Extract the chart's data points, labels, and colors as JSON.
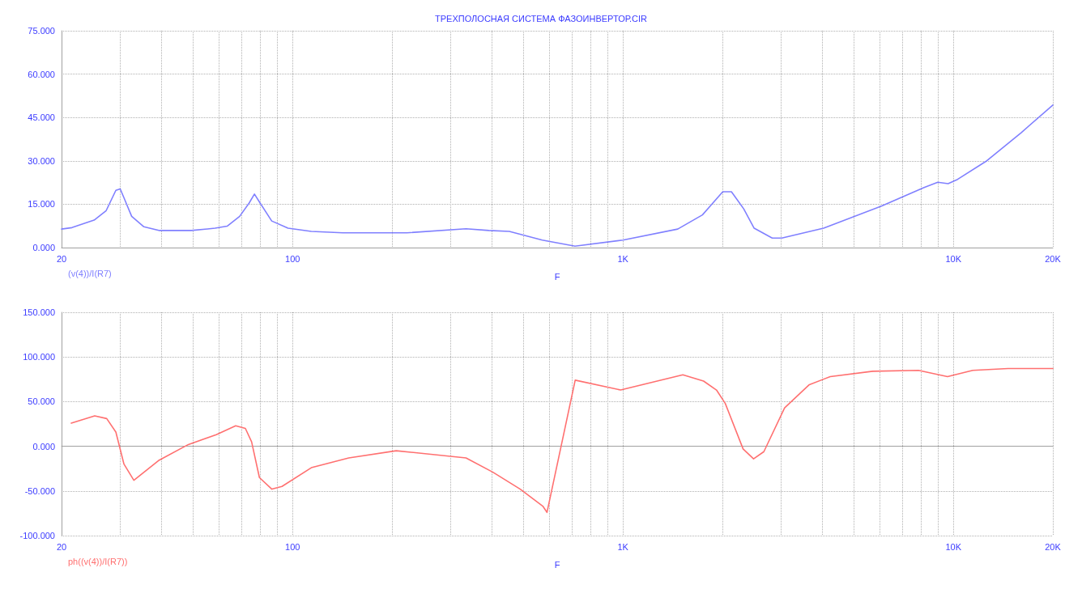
{
  "chart_data": [
    {
      "type": "line",
      "title": "ТРЕХПОЛОСНАЯ СИСТЕМА ФАЗОИНВЕРТОР.CIR",
      "xlabel": "F",
      "log": "x",
      "grid": true,
      "legend": "bottom left",
      "marker": "none",
      "line_style": "solid",
      "xlim": [
        20,
        20000
      ],
      "xticks": [
        {
          "value": 20,
          "label": "20"
        },
        {
          "value": 30,
          "label": null
        },
        {
          "value": 40,
          "label": null
        },
        {
          "value": 50,
          "label": null
        },
        {
          "value": 60,
          "label": null
        },
        {
          "value": 70,
          "label": null
        },
        {
          "value": 80,
          "label": null
        },
        {
          "value": 90,
          "label": null
        },
        {
          "value": 100,
          "label": "100"
        },
        {
          "value": 200,
          "label": null
        },
        {
          "value": 300,
          "label": null
        },
        {
          "value": 400,
          "label": null
        },
        {
          "value": 500,
          "label": null
        },
        {
          "value": 600,
          "label": null
        },
        {
          "value": 700,
          "label": null
        },
        {
          "value": 800,
          "label": null
        },
        {
          "value": 900,
          "label": null
        },
        {
          "value": 1000,
          "label": "1K"
        },
        {
          "value": 2000,
          "label": null
        },
        {
          "value": 3000,
          "label": null
        },
        {
          "value": 4000,
          "label": null
        },
        {
          "value": 5000,
          "label": null
        },
        {
          "value": 6000,
          "label": null
        },
        {
          "value": 7000,
          "label": null
        },
        {
          "value": 8000,
          "label": null
        },
        {
          "value": 9000,
          "label": null
        },
        {
          "value": 10000,
          "label": "10K"
        },
        {
          "value": 20000,
          "label": "20K"
        }
      ],
      "ylim": [
        0,
        75
      ],
      "yticks": [
        {
          "value": 0,
          "label": "0.000"
        },
        {
          "value": 15,
          "label": "15.000"
        },
        {
          "value": 30,
          "label": "30.000"
        },
        {
          "value": 45,
          "label": "45.000"
        },
        {
          "value": 60,
          "label": "60.000"
        },
        {
          "value": 75,
          "label": "75.000"
        }
      ],
      "series": [
        {
          "name": "(v(4))/I(R7)",
          "color": "#8080ff",
          "x": [
            20,
            21.5,
            25.1,
            27.3,
            29.2,
            30.1,
            30.9,
            32.6,
            35.5,
            39.6,
            49.4,
            58.3,
            63.4,
            69.2,
            73.9,
            76.7,
            79.8,
            86.5,
            96.9,
            114,
            142,
            222,
            335,
            393,
            453,
            570,
            716,
            1000,
            1465,
            1740,
            2005,
            2130,
            2320,
            2495,
            2830,
            3025,
            4050,
            6075,
            8155,
            8970,
            9640,
            10300,
            12540,
            16060,
            20000
          ],
          "values": [
            6.4,
            6.9,
            9.5,
            12.8,
            19.8,
            20.3,
            17.2,
            10.8,
            7.2,
            5.9,
            5.9,
            6.7,
            7.4,
            10.8,
            15.4,
            18.5,
            15.4,
            9.2,
            6.7,
            5.6,
            5.1,
            5.1,
            6.5,
            5.9,
            5.6,
            2.6,
            0.5,
            2.6,
            6.4,
            11.3,
            19.3,
            19.3,
            13.4,
            6.7,
            3.3,
            3.3,
            6.7,
            14.4,
            20.8,
            22.6,
            22.1,
            23.6,
            29.8,
            39.8,
            49.3
          ]
        }
      ]
    },
    {
      "type": "line",
      "xlabel": "F",
      "log": "x",
      "grid": true,
      "legend": "bottom left",
      "marker": "none",
      "line_style": "solid",
      "xlim": [
        20,
        20000
      ],
      "xticks": [
        {
          "value": 20,
          "label": "20"
        },
        {
          "value": 30,
          "label": null
        },
        {
          "value": 40,
          "label": null
        },
        {
          "value": 50,
          "label": null
        },
        {
          "value": 60,
          "label": null
        },
        {
          "value": 70,
          "label": null
        },
        {
          "value": 80,
          "label": null
        },
        {
          "value": 90,
          "label": null
        },
        {
          "value": 100,
          "label": "100"
        },
        {
          "value": 200,
          "label": null
        },
        {
          "value": 300,
          "label": null
        },
        {
          "value": 400,
          "label": null
        },
        {
          "value": 500,
          "label": null
        },
        {
          "value": 600,
          "label": null
        },
        {
          "value": 700,
          "label": null
        },
        {
          "value": 800,
          "label": null
        },
        {
          "value": 900,
          "label": null
        },
        {
          "value": 1000,
          "label": "1K"
        },
        {
          "value": 2000,
          "label": null
        },
        {
          "value": 3000,
          "label": null
        },
        {
          "value": 4000,
          "label": null
        },
        {
          "value": 5000,
          "label": null
        },
        {
          "value": 6000,
          "label": null
        },
        {
          "value": 7000,
          "label": null
        },
        {
          "value": 8000,
          "label": null
        },
        {
          "value": 9000,
          "label": null
        },
        {
          "value": 10000,
          "label": "10K"
        },
        {
          "value": 20000,
          "label": "20K"
        }
      ],
      "ylim": [
        -100,
        150
      ],
      "yticks": [
        {
          "value": -100,
          "label": "-100.000"
        },
        {
          "value": -50,
          "label": "-50.000"
        },
        {
          "value": 0,
          "label": "0.000"
        },
        {
          "value": 50,
          "label": "50.000"
        },
        {
          "value": 100,
          "label": "100.000"
        },
        {
          "value": 150,
          "label": "150.000"
        }
      ],
      "series": [
        {
          "name": "ph((v(4))/I(R7))",
          "color": "#ff7070",
          "x": [
            21.4,
            25.2,
            27.4,
            29.2,
            30.9,
            33.1,
            39.3,
            48.4,
            58.8,
            67.3,
            72.0,
            75.2,
            79.4,
            86.6,
            92.9,
            114,
            148,
            206,
            335,
            404,
            489,
            572,
            589,
            717,
            984,
            1518,
            1754,
            1919,
            2040,
            2310,
            2485,
            2670,
            3085,
            3665,
            4240,
            5700,
            7840,
            9600,
            11450,
            14640,
            20000
          ],
          "values": [
            26,
            34,
            31,
            16,
            -20,
            -38,
            -16,
            2,
            13,
            23,
            20,
            5,
            -35,
            -48,
            -45,
            -24,
            -13,
            -5,
            -13,
            -29,
            -48,
            -67,
            -74,
            74,
            63,
            80,
            73,
            63,
            48,
            -3,
            -14,
            -6,
            43,
            69,
            78,
            84,
            85,
            78,
            85,
            87,
            87
          ]
        }
      ]
    }
  ]
}
